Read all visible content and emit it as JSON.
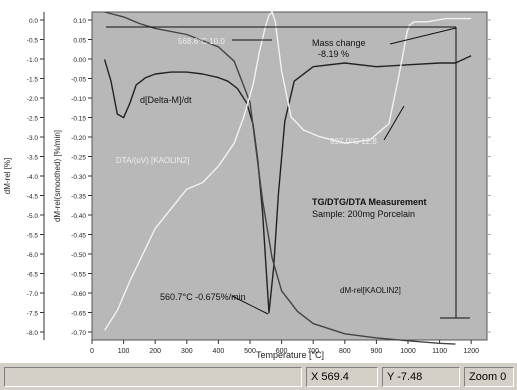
{
  "status_bar": {
    "message": "",
    "x_readout": "X 569.4",
    "y_readout": "Y -7.48",
    "zoom": "Zoom 0"
  },
  "chart_data": {
    "type": "line",
    "title": "TG/DTG/DTA Measurement",
    "subtitle": "Sample: 200mg Porcelain",
    "xlabel": "Temperature [°C]",
    "xlim": [
      0,
      1250
    ],
    "x_ticks": [
      "0",
      "100",
      "200",
      "300",
      "400",
      "500",
      "600",
      "700",
      "800",
      "900",
      "1000",
      "1100",
      "1200"
    ],
    "y1_label": "dM-rel [%]",
    "y1_lim": [
      -8.0,
      0.0
    ],
    "y1_ticks": [
      "0.0",
      "-0.5",
      "-1.0",
      "-1.5",
      "-2.0",
      "-2.5",
      "-3.0",
      "-3.5",
      "-4.0",
      "-4.5",
      "-5.0",
      "-5.5",
      "-6.0",
      "-6.5",
      "-7.0",
      "-7.5",
      "-8.0"
    ],
    "y2_label": "dM-rel(smoothed) [%/min]",
    "y2_lim": [
      -0.75,
      0.15
    ],
    "y2_ticks": [
      "0.10",
      "0.05",
      "0.00",
      "-0.05",
      "-0.10",
      "-0.15",
      "-0.20",
      "-0.25",
      "-0.30",
      "-0.35",
      "-0.40",
      "-0.45",
      "-0.50",
      "-0.55",
      "-0.60",
      "-0.65",
      "-0.70"
    ],
    "y3_lim": [
      0,
      100
    ],
    "y3_ticks": [
      "",
      "",
      "",
      "",
      "",
      "",
      "",
      "",
      "",
      "",
      "",
      "",
      "",
      "",
      "",
      "",
      ""
    ],
    "annotations": {
      "mass_change_label": "Mass change",
      "mass_change_value": "-8.19 %",
      "dtg_peak": "560.7°C  -0.675%/min",
      "dta_peak_1": "568.6°C  10.0",
      "dta_peak_2": "997.0°C  12.8",
      "dtg_curve_label": "d[Delta-M]/dt",
      "dta_curve_label": "DTA/(uV) [KAOLIN2]",
      "tg_curve_label": "dM-rel[KAOLIN2]"
    },
    "series": [
      {
        "name": "d[Delta-M]/dt",
        "axis": "y2",
        "color": "#222222",
        "x": [
          40,
          60,
          80,
          100,
          120,
          140,
          170,
          200,
          250,
          300,
          350,
          400,
          430,
          460,
          490,
          510,
          525,
          540,
          550,
          560,
          575,
          590,
          610,
          640,
          700,
          800,
          900,
          1000,
          1100,
          1150,
          1200
        ],
        "y": [
          0.02,
          -0.04,
          -0.13,
          -0.14,
          -0.1,
          -0.05,
          -0.03,
          -0.02,
          -0.015,
          -0.015,
          -0.02,
          -0.03,
          -0.04,
          -0.06,
          -0.1,
          -0.16,
          -0.26,
          -0.4,
          -0.54,
          -0.675,
          -0.55,
          -0.35,
          -0.15,
          -0.04,
          0.0,
          0.01,
          0.0,
          0.005,
          0.01,
          0.01,
          0.03
        ]
      },
      {
        "name": "dM-rel[KAOLIN2]",
        "axis": "y1",
        "color": "#444444",
        "x": [
          40,
          100,
          150,
          200,
          300,
          400,
          450,
          500,
          540,
          570,
          600,
          650,
          700,
          800,
          900,
          1000,
          1100,
          1150
        ],
        "y": [
          0.0,
          -0.12,
          -0.28,
          -0.4,
          -0.55,
          -0.85,
          -1.2,
          -2.2,
          -4.6,
          -6.0,
          -6.8,
          -7.3,
          -7.6,
          -7.85,
          -7.95,
          -8.02,
          -8.08,
          -8.1
        ]
      },
      {
        "name": "DTA/(uV) [KAOLIN2]",
        "axis": "y3",
        "color": "#f2f2f2",
        "x": [
          40,
          80,
          120,
          160,
          200,
          250,
          300,
          350,
          400,
          450,
          480,
          510,
          530,
          550,
          560,
          570,
          580,
          600,
          630,
          670,
          720,
          800,
          880,
          940,
          970,
          990,
          997,
          1005,
          1020,
          1060,
          1120,
          1200
        ],
        "y": [
          3,
          9,
          18,
          26,
          34,
          40,
          46,
          48,
          53,
          60,
          68,
          78,
          88,
          96,
          99,
          100,
          97,
          82,
          68,
          64,
          62,
          60,
          61,
          66,
          80,
          90,
          94,
          96,
          97,
          97,
          98,
          98
        ]
      }
    ],
    "grid": false,
    "background": "#b8b8b8"
  }
}
